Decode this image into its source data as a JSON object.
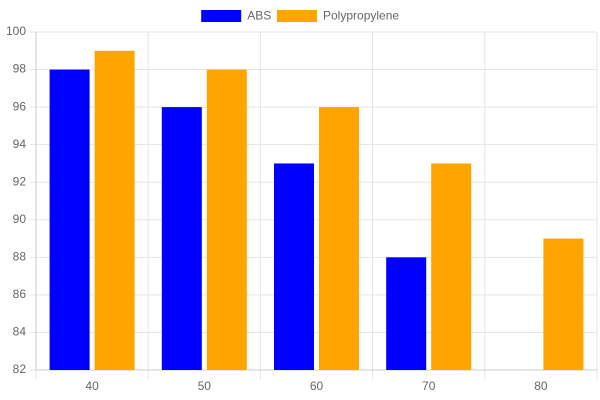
{
  "chart_data": {
    "type": "bar",
    "categories": [
      "40",
      "50",
      "60",
      "70",
      "80"
    ],
    "series": [
      {
        "name": "ABS",
        "color": "#0000ff",
        "values": [
          98,
          96,
          93,
          88,
          null
        ]
      },
      {
        "name": "Polypropylene",
        "color": "#ffa500",
        "values": [
          99,
          98,
          96,
          93,
          89
        ]
      }
    ],
    "ylim": [
      82,
      100
    ],
    "yticks": [
      82,
      84,
      86,
      88,
      90,
      92,
      94,
      96,
      98,
      100
    ],
    "grid": true,
    "legend": "top"
  }
}
